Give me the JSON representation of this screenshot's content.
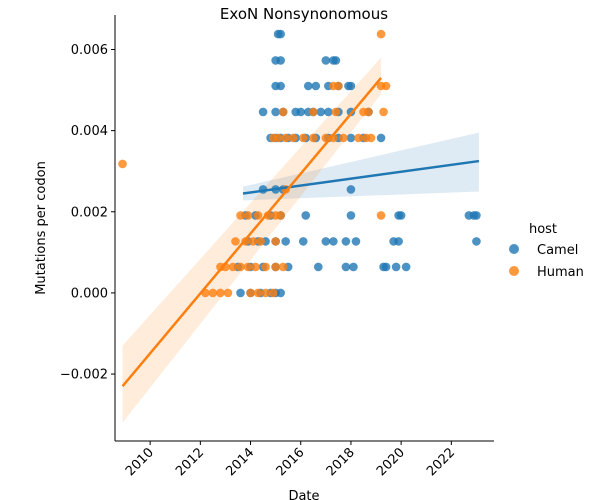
{
  "chart_data": {
    "type": "scatter",
    "title": "ExoN Nonsynonomous",
    "xlabel": "Date",
    "ylabel": "Mutations per codon",
    "xlim": [
      2008.6,
      2023.7
    ],
    "ylim": [
      -0.00365,
      0.00685
    ],
    "x_ticks": [
      2010,
      2012,
      2014,
      2016,
      2018,
      2020,
      2022
    ],
    "y_ticks": [
      -0.002,
      0.0,
      0.002,
      0.004,
      0.006
    ],
    "y_tick_labels": [
      "−0.002",
      "0.000",
      "0.002",
      "0.004",
      "0.006"
    ],
    "grid": false,
    "legend": {
      "title": "host",
      "placement": "right"
    },
    "series": [
      {
        "name": "Camel",
        "color": "#1f77b4",
        "points": [
          [
            2015.1,
            0.00638
          ],
          [
            2015.2,
            0.00638
          ],
          [
            2015.0,
            0.00573
          ],
          [
            2015.2,
            0.00573
          ],
          [
            2017.0,
            0.00573
          ],
          [
            2017.3,
            0.00573
          ],
          [
            2017.4,
            0.00573
          ],
          [
            2015.0,
            0.0051
          ],
          [
            2015.2,
            0.0051
          ],
          [
            2016.3,
            0.0051
          ],
          [
            2016.6,
            0.0051
          ],
          [
            2017.1,
            0.0051
          ],
          [
            2017.5,
            0.0051
          ],
          [
            2017.9,
            0.0051
          ],
          [
            2018.0,
            0.0051
          ],
          [
            2014.5,
            0.00446
          ],
          [
            2015.0,
            0.00446
          ],
          [
            2015.3,
            0.00446
          ],
          [
            2015.8,
            0.00446
          ],
          [
            2016.0,
            0.00446
          ],
          [
            2016.3,
            0.00446
          ],
          [
            2016.5,
            0.00446
          ],
          [
            2016.8,
            0.00446
          ],
          [
            2017.1,
            0.00446
          ],
          [
            2017.5,
            0.00446
          ],
          [
            2018.0,
            0.00446
          ],
          [
            2018.7,
            0.00446
          ],
          [
            2014.8,
            0.00382
          ],
          [
            2015.0,
            0.00382
          ],
          [
            2015.2,
            0.00382
          ],
          [
            2015.5,
            0.00382
          ],
          [
            2015.8,
            0.00382
          ],
          [
            2016.2,
            0.00382
          ],
          [
            2016.6,
            0.00382
          ],
          [
            2017.1,
            0.00382
          ],
          [
            2017.5,
            0.00382
          ],
          [
            2018.0,
            0.00382
          ],
          [
            2018.5,
            0.00382
          ],
          [
            2019.2,
            0.00382
          ],
          [
            2014.5,
            0.00255
          ],
          [
            2015.0,
            0.00255
          ],
          [
            2015.3,
            0.00255
          ],
          [
            2018.0,
            0.00255
          ],
          [
            2013.8,
            0.00191
          ],
          [
            2014.2,
            0.00191
          ],
          [
            2014.8,
            0.00191
          ],
          [
            2015.2,
            0.00191
          ],
          [
            2016.2,
            0.00191
          ],
          [
            2018.0,
            0.00191
          ],
          [
            2019.9,
            0.00191
          ],
          [
            2020.0,
            0.00191
          ],
          [
            2022.7,
            0.00191
          ],
          [
            2022.9,
            0.00191
          ],
          [
            2023.0,
            0.00191
          ],
          [
            2013.9,
            0.00127
          ],
          [
            2014.3,
            0.00127
          ],
          [
            2014.6,
            0.00127
          ],
          [
            2015.0,
            0.00127
          ],
          [
            2015.4,
            0.00127
          ],
          [
            2016.1,
            0.00127
          ],
          [
            2017.0,
            0.00127
          ],
          [
            2017.3,
            0.00127
          ],
          [
            2017.8,
            0.00127
          ],
          [
            2018.2,
            0.00127
          ],
          [
            2019.7,
            0.00127
          ],
          [
            2019.9,
            0.00127
          ],
          [
            2023.0,
            0.00127
          ],
          [
            2013.5,
            0.00064
          ],
          [
            2014.0,
            0.00064
          ],
          [
            2014.5,
            0.00064
          ],
          [
            2015.0,
            0.00064
          ],
          [
            2015.5,
            0.00064
          ],
          [
            2016.7,
            0.00064
          ],
          [
            2017.8,
            0.00064
          ],
          [
            2018.1,
            0.00064
          ],
          [
            2019.3,
            0.00064
          ],
          [
            2019.4,
            0.00064
          ],
          [
            2019.8,
            0.00064
          ],
          [
            2020.2,
            0.00064
          ],
          [
            2013.6,
            0.0
          ],
          [
            2014.0,
            0.0
          ],
          [
            2014.4,
            0.0
          ],
          [
            2014.8,
            0.0
          ],
          [
            2015.0,
            0.0
          ],
          [
            2015.2,
            0.0
          ]
        ],
        "trend": {
          "x": [
            2013.7,
            2023.1
          ],
          "y": [
            0.00245,
            0.00325
          ],
          "ci_start": [
            0.00228,
            0.00262
          ],
          "ci_end": [
            0.0025,
            0.00395
          ]
        }
      },
      {
        "name": "Human",
        "color": "#ff7f0e",
        "points": [
          [
            2008.9,
            0.00318
          ],
          [
            2019.2,
            0.00638
          ],
          [
            2017.3,
            0.0051
          ],
          [
            2017.5,
            0.0051
          ],
          [
            2019.2,
            0.0051
          ],
          [
            2019.4,
            0.0051
          ],
          [
            2015.3,
            0.00446
          ],
          [
            2016.5,
            0.00446
          ],
          [
            2017.4,
            0.00446
          ],
          [
            2018.5,
            0.00446
          ],
          [
            2018.7,
            0.00446
          ],
          [
            2019.3,
            0.00446
          ],
          [
            2014.9,
            0.00382
          ],
          [
            2015.1,
            0.00382
          ],
          [
            2015.4,
            0.00382
          ],
          [
            2015.7,
            0.00382
          ],
          [
            2016.1,
            0.00382
          ],
          [
            2016.5,
            0.00382
          ],
          [
            2017.0,
            0.00382
          ],
          [
            2017.3,
            0.00382
          ],
          [
            2017.7,
            0.00382
          ],
          [
            2018.3,
            0.00382
          ],
          [
            2018.6,
            0.00382
          ],
          [
            2018.8,
            0.00382
          ],
          [
            2015.4,
            0.00255
          ],
          [
            2013.6,
            0.00191
          ],
          [
            2013.9,
            0.00191
          ],
          [
            2014.3,
            0.00191
          ],
          [
            2014.7,
            0.00191
          ],
          [
            2015.0,
            0.00191
          ],
          [
            2015.2,
            0.00191
          ],
          [
            2019.2,
            0.00191
          ],
          [
            2013.4,
            0.00127
          ],
          [
            2013.8,
            0.00127
          ],
          [
            2014.1,
            0.00127
          ],
          [
            2014.4,
            0.00127
          ],
          [
            2015.0,
            0.00127
          ],
          [
            2012.8,
            0.00064
          ],
          [
            2013.0,
            0.00064
          ],
          [
            2013.3,
            0.00064
          ],
          [
            2013.6,
            0.00064
          ],
          [
            2013.9,
            0.00064
          ],
          [
            2014.2,
            0.00064
          ],
          [
            2014.6,
            0.00064
          ],
          [
            2015.0,
            0.00064
          ],
          [
            2015.3,
            0.00064
          ],
          [
            2012.2,
            0.0
          ],
          [
            2012.5,
            0.0
          ],
          [
            2012.8,
            0.0
          ],
          [
            2013.1,
            0.0
          ],
          [
            2014.0,
            0.0
          ],
          [
            2014.3,
            0.0
          ],
          [
            2014.6,
            0.0
          ],
          [
            2014.9,
            0.0
          ]
        ],
        "trend": {
          "x": [
            2008.9,
            2019.2
          ],
          "y": [
            -0.0023,
            0.0053
          ],
          "ci_start": [
            -0.0032,
            -0.0013
          ],
          "ci_end": [
            0.0049,
            0.0058
          ]
        }
      }
    ]
  }
}
